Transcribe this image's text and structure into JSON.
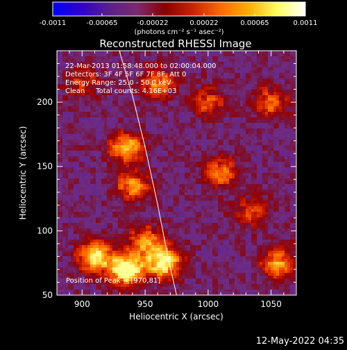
{
  "chart_data": {
    "type": "heatmap",
    "title": "Reconstructed RHESSI Image",
    "xlabel": "Heliocentric X (arcsec)",
    "ylabel": "Heliocentric Y (arcsec)",
    "xlim": [
      880,
      1070
    ],
    "ylim": [
      50,
      240
    ],
    "x_ticks": [
      900,
      950,
      1000,
      1050
    ],
    "y_ticks": [
      50,
      100,
      150,
      200
    ],
    "colorbar": {
      "min": -0.0011,
      "max": 0.0011,
      "tick_labels": [
        "-0.0011",
        "-0.00065",
        "-0.00022",
        "0.00022",
        "0.00065",
        "0.0011"
      ],
      "unit_label": "(photons cm⁻² s⁻¹ asec⁻²)",
      "palette": [
        "#0000ff",
        "#3000d0",
        "#5a1f8c",
        "#7a2a6f",
        "#8a0000",
        "#cc2200",
        "#ff6a00",
        "#ffb000",
        "#ffff60",
        "#ffffff"
      ]
    },
    "annotations": [
      "22-Mar-2013 01:58:48.000 to 02:00:04.000",
      "Detectors: 3F 4F 5F 6F 7F 8F, Att 0",
      "Energy Range: 25.0 - 50.0 keV",
      "Clean     Total counts: 4.16E+03"
    ],
    "peak_label": "Position of Peak = [970,81]",
    "limb_curve": [
      [
        975,
        50
      ],
      [
        968,
        80
      ],
      [
        960,
        120
      ],
      [
        950,
        165
      ],
      [
        940,
        205
      ],
      [
        928,
        245
      ]
    ],
    "hot_regions": [
      {
        "x": 935,
        "y": 70,
        "strength": 1.0
      },
      {
        "x": 965,
        "y": 75,
        "strength": 0.9
      },
      {
        "x": 910,
        "y": 80,
        "strength": 0.8
      },
      {
        "x": 950,
        "y": 92,
        "strength": 0.6
      },
      {
        "x": 935,
        "y": 165,
        "strength": 0.7
      },
      {
        "x": 940,
        "y": 135,
        "strength": 0.6
      },
      {
        "x": 1010,
        "y": 145,
        "strength": 0.55
      },
      {
        "x": 1055,
        "y": 75,
        "strength": 0.6
      },
      {
        "x": 1050,
        "y": 200,
        "strength": 0.5
      },
      {
        "x": 960,
        "y": 215,
        "strength": 0.55
      },
      {
        "x": 1000,
        "y": 200,
        "strength": 0.45
      },
      {
        "x": 1035,
        "y": 115,
        "strength": 0.45
      },
      {
        "x": 900,
        "y": 215,
        "strength": 0.4
      }
    ]
  },
  "footer": {
    "timestamp": "12-May-2022 04:35"
  }
}
